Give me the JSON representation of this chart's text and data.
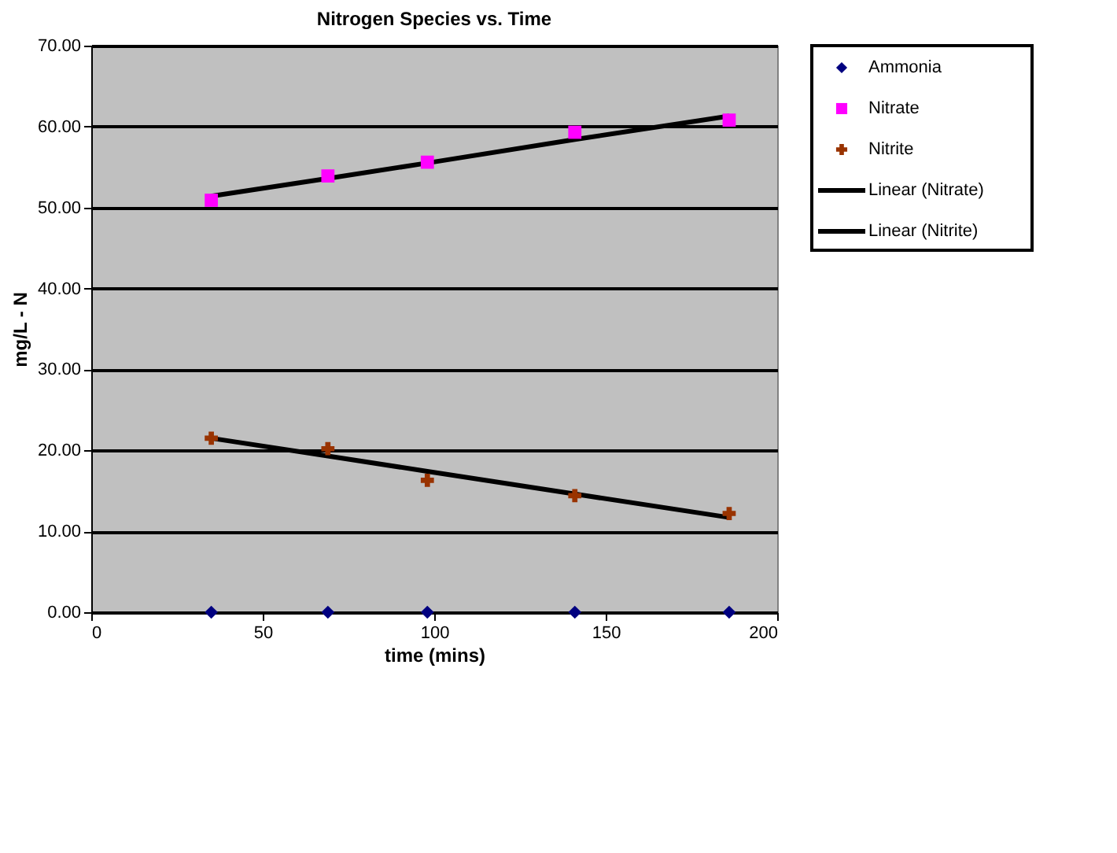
{
  "chart_data": {
    "type": "scatter",
    "title": "Nitrogen Species vs. Time",
    "xlabel": "time (mins)",
    "ylabel": "mg/L - N",
    "x": [
      35,
      69,
      98,
      141,
      186
    ],
    "series": [
      {
        "name": "Ammonia",
        "color": "#000080",
        "marker": "diamond",
        "values": [
          0,
          0,
          0,
          0,
          0
        ]
      },
      {
        "name": "Nitrate",
        "color": "#ff00ff",
        "marker": "square",
        "values": [
          50.9,
          53.9,
          55.6,
          59.3,
          60.8
        ]
      },
      {
        "name": "Nitrite",
        "color": "#993300",
        "marker": "cross",
        "values": [
          21.5,
          20.2,
          16.3,
          14.4,
          12.2
        ]
      },
      {
        "name": "Linear (Nitrate)",
        "type": "line",
        "color": "#000000",
        "values": [
          51.4,
          53.6,
          55.5,
          58.4,
          61.3
        ]
      },
      {
        "name": "Linear (Nitrite)",
        "type": "line",
        "color": "#000000",
        "values": [
          21.5,
          19.3,
          17.4,
          14.6,
          11.7
        ]
      }
    ],
    "xlim": [
      0,
      200
    ],
    "xticks": [
      0,
      50,
      100,
      150,
      200
    ],
    "ylim": [
      0,
      70
    ],
    "yticks": [
      {
        "value": 0,
        "label": "0.00"
      },
      {
        "value": 10,
        "label": "10.00"
      },
      {
        "value": 20,
        "label": "20.00"
      },
      {
        "value": 30,
        "label": "30.00"
      },
      {
        "value": 40,
        "label": "40.00"
      },
      {
        "value": 50,
        "label": "50.00"
      },
      {
        "value": 60,
        "label": "60.00"
      },
      {
        "value": 70,
        "label": "70.00"
      }
    ],
    "grid": "y",
    "legend": "right"
  }
}
